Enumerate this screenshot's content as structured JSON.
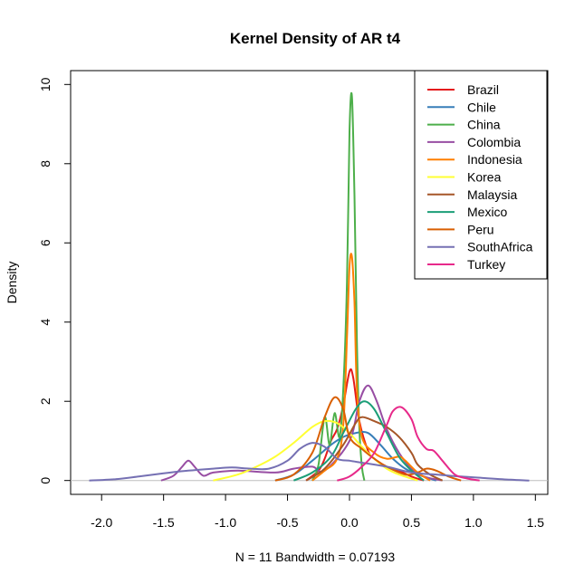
{
  "chart_data": {
    "type": "line",
    "title": "Kernel Density of AR t4",
    "xlabel": "N = 11   Bandwidth = 0.07193",
    "ylabel": "Density",
    "xlim": [
      -2.25,
      1.6
    ],
    "ylim": [
      -0.35,
      10.35
    ],
    "x_ticks": [
      -2.0,
      -1.5,
      -1.0,
      -0.5,
      0.0,
      0.5,
      1.0,
      1.5
    ],
    "x_tick_labels": [
      "-2.0",
      "-1.5",
      "-1.0",
      "-0.5",
      "0.0",
      "0.5",
      "1.0",
      "1.5"
    ],
    "y_ticks": [
      0,
      2,
      4,
      6,
      8,
      10
    ],
    "y_tick_labels": [
      "0",
      "2",
      "4",
      "6",
      "8",
      "10"
    ],
    "legend_position": "top-right",
    "baseline_color": "#bebebe",
    "series": [
      {
        "name": "Brazil",
        "color": "#e41a1c",
        "points": [
          [
            -0.35,
            0
          ],
          [
            -0.25,
            0.25
          ],
          [
            -0.2,
            0.55
          ],
          [
            -0.15,
            1.0
          ],
          [
            -0.1,
            1.3
          ],
          [
            -0.05,
            1.9
          ],
          [
            0.0,
            2.75
          ],
          [
            0.03,
            2.6
          ],
          [
            0.08,
            1.5
          ],
          [
            0.15,
            0.75
          ],
          [
            0.2,
            0.55
          ],
          [
            0.3,
            0.35
          ],
          [
            0.4,
            0.25
          ],
          [
            0.5,
            0.1
          ],
          [
            0.6,
            0
          ]
        ]
      },
      {
        "name": "Chile",
        "color": "#377eb8",
        "points": [
          [
            -0.6,
            0
          ],
          [
            -0.45,
            0.15
          ],
          [
            -0.3,
            0.5
          ],
          [
            -0.15,
            0.9
          ],
          [
            -0.05,
            1.1
          ],
          [
            0.05,
            1.2
          ],
          [
            0.15,
            1.2
          ],
          [
            0.25,
            0.9
          ],
          [
            0.35,
            0.55
          ],
          [
            0.45,
            0.3
          ],
          [
            0.55,
            0.15
          ],
          [
            0.7,
            0
          ]
        ]
      },
      {
        "name": "China",
        "color": "#4daf4a",
        "points": [
          [
            -0.3,
            0
          ],
          [
            -0.25,
            0.4
          ],
          [
            -0.2,
            1.6
          ],
          [
            -0.16,
            0.9
          ],
          [
            -0.12,
            1.7
          ],
          [
            -0.08,
            1.1
          ],
          [
            -0.05,
            2.3
          ],
          [
            -0.02,
            5.0
          ],
          [
            0.0,
            8.8
          ],
          [
            0.02,
            9.7
          ],
          [
            0.04,
            7.2
          ],
          [
            0.06,
            3.5
          ],
          [
            0.08,
            1.3
          ],
          [
            0.1,
            0.35
          ],
          [
            0.12,
            0
          ]
        ]
      },
      {
        "name": "Colombia",
        "color": "#984ea3",
        "points": [
          [
            -1.52,
            0
          ],
          [
            -1.42,
            0.12
          ],
          [
            -1.35,
            0.35
          ],
          [
            -1.3,
            0.5
          ],
          [
            -1.25,
            0.35
          ],
          [
            -1.18,
            0.12
          ],
          [
            -1.1,
            0.2
          ],
          [
            -0.9,
            0.25
          ],
          [
            -0.6,
            0.2
          ],
          [
            -0.45,
            0.3
          ],
          [
            -0.3,
            0.35
          ],
          [
            -0.2,
            0.25
          ],
          [
            0.0,
            1.0
          ],
          [
            0.08,
            2.0
          ],
          [
            0.15,
            2.4
          ],
          [
            0.22,
            2.0
          ],
          [
            0.3,
            1.3
          ],
          [
            0.4,
            0.7
          ],
          [
            0.5,
            0.3
          ],
          [
            0.6,
            0.1
          ],
          [
            0.75,
            0
          ]
        ]
      },
      {
        "name": "Indonesia",
        "color": "#ff7f00",
        "points": [
          [
            -0.3,
            0
          ],
          [
            -0.2,
            0.25
          ],
          [
            -0.1,
            0.55
          ],
          [
            -0.05,
            1.4
          ],
          [
            -0.02,
            3.6
          ],
          [
            0.0,
            5.4
          ],
          [
            0.02,
            5.65
          ],
          [
            0.04,
            4.5
          ],
          [
            0.06,
            2.3
          ],
          [
            0.1,
            1.1
          ],
          [
            0.2,
            0.7
          ],
          [
            0.3,
            0.55
          ],
          [
            0.4,
            0.6
          ],
          [
            0.45,
            0.5
          ],
          [
            0.55,
            0.2
          ],
          [
            0.65,
            0
          ]
        ]
      },
      {
        "name": "Korea",
        "color": "#ffff33",
        "points": [
          [
            -1.1,
            0
          ],
          [
            -0.9,
            0.15
          ],
          [
            -0.75,
            0.35
          ],
          [
            -0.6,
            0.6
          ],
          [
            -0.45,
            0.95
          ],
          [
            -0.3,
            1.35
          ],
          [
            -0.2,
            1.5
          ],
          [
            -0.1,
            1.45
          ],
          [
            0.0,
            1.2
          ],
          [
            0.1,
            0.85
          ],
          [
            0.2,
            0.55
          ],
          [
            0.3,
            0.3
          ],
          [
            0.4,
            0.15
          ],
          [
            0.55,
            0
          ]
        ]
      },
      {
        "name": "Malaysia",
        "color": "#a65628",
        "points": [
          [
            -0.35,
            0
          ],
          [
            -0.2,
            0.3
          ],
          [
            -0.05,
            0.9
          ],
          [
            0.05,
            1.45
          ],
          [
            0.1,
            1.6
          ],
          [
            0.2,
            1.5
          ],
          [
            0.3,
            1.35
          ],
          [
            0.4,
            1.1
          ],
          [
            0.5,
            0.7
          ],
          [
            0.55,
            0.4
          ],
          [
            0.65,
            0.15
          ],
          [
            0.75,
            0
          ]
        ]
      },
      {
        "name": "Mexico",
        "color": "#1b9e77",
        "points": [
          [
            -0.45,
            0
          ],
          [
            -0.3,
            0.2
          ],
          [
            -0.15,
            0.6
          ],
          [
            -0.05,
            1.2
          ],
          [
            0.05,
            1.8
          ],
          [
            0.12,
            2.0
          ],
          [
            0.2,
            1.8
          ],
          [
            0.3,
            1.2
          ],
          [
            0.4,
            0.6
          ],
          [
            0.5,
            0.25
          ],
          [
            0.6,
            0
          ]
        ]
      },
      {
        "name": "Peru",
        "color": "#d95f02",
        "points": [
          [
            -0.6,
            0
          ],
          [
            -0.45,
            0.15
          ],
          [
            -0.3,
            0.7
          ],
          [
            -0.2,
            1.6
          ],
          [
            -0.12,
            2.1
          ],
          [
            -0.05,
            1.8
          ],
          [
            0.0,
            1.1
          ],
          [
            0.1,
            0.8
          ],
          [
            0.2,
            0.55
          ],
          [
            0.3,
            0.35
          ],
          [
            0.45,
            0.15
          ],
          [
            0.55,
            0.2
          ],
          [
            0.62,
            0.3
          ],
          [
            0.7,
            0.25
          ],
          [
            0.8,
            0.1
          ],
          [
            0.9,
            0
          ]
        ]
      },
      {
        "name": "SouthAfrica",
        "color": "#7570b3",
        "points": [
          [
            -2.1,
            0
          ],
          [
            -1.9,
            0.03
          ],
          [
            -1.7,
            0.1
          ],
          [
            -1.5,
            0.18
          ],
          [
            -1.3,
            0.25
          ],
          [
            -1.1,
            0.3
          ],
          [
            -0.95,
            0.33
          ],
          [
            -0.8,
            0.3
          ],
          [
            -0.65,
            0.3
          ],
          [
            -0.5,
            0.5
          ],
          [
            -0.4,
            0.8
          ],
          [
            -0.3,
            0.95
          ],
          [
            -0.2,
            0.85
          ],
          [
            -0.1,
            0.55
          ],
          [
            0.0,
            0.5
          ],
          [
            0.1,
            0.45
          ],
          [
            0.3,
            0.35
          ],
          [
            0.5,
            0.2
          ],
          [
            0.7,
            0.15
          ],
          [
            0.9,
            0.1
          ],
          [
            1.1,
            0.06
          ],
          [
            1.3,
            0.02
          ],
          [
            1.45,
            0
          ]
        ]
      },
      {
        "name": "Turkey",
        "color": "#e7298a",
        "points": [
          [
            -0.1,
            0
          ],
          [
            0.0,
            0.1
          ],
          [
            0.1,
            0.35
          ],
          [
            0.2,
            0.7
          ],
          [
            0.3,
            1.4
          ],
          [
            0.35,
            1.75
          ],
          [
            0.42,
            1.85
          ],
          [
            0.5,
            1.55
          ],
          [
            0.55,
            1.1
          ],
          [
            0.62,
            0.8
          ],
          [
            0.68,
            0.75
          ],
          [
            0.75,
            0.5
          ],
          [
            0.85,
            0.15
          ],
          [
            0.95,
            0.05
          ],
          [
            1.05,
            0
          ]
        ]
      }
    ]
  }
}
